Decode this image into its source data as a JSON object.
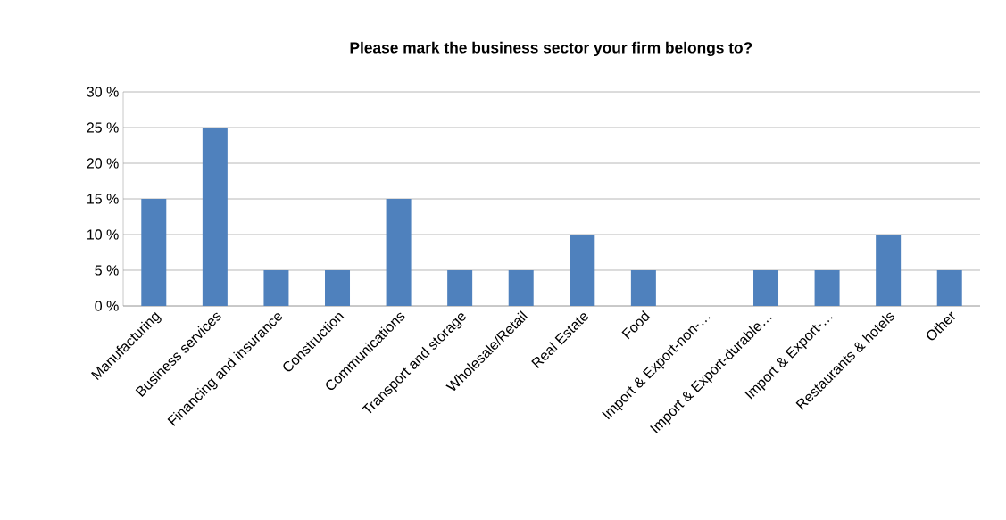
{
  "chart_data": {
    "type": "bar",
    "title": "Please mark the business sector your firm belongs to?",
    "categories": [
      "Manufacturing",
      "Business services",
      "Financing and insurance",
      "Construction",
      "Communications",
      "Transport and storage",
      "Wholesale/Retail",
      "Real Estate",
      "Food",
      "Import & Export-non-…",
      "Import & Export-durable…",
      "Import & Export-…",
      "Restaurants & hotels",
      "Other"
    ],
    "values": [
      15,
      25,
      5,
      5,
      15,
      5,
      5,
      10,
      5,
      0,
      5,
      5,
      10,
      5
    ],
    "color": "#4f81bd",
    "ylim": [
      0,
      30
    ],
    "yticks": [
      {
        "value": 0,
        "label": "0 %"
      },
      {
        "value": 5,
        "label": "5 %"
      },
      {
        "value": 10,
        "label": "10 %"
      },
      {
        "value": 15,
        "label": "15 %"
      },
      {
        "value": 20,
        "label": "20 %"
      },
      {
        "value": 25,
        "label": "25 %"
      },
      {
        "value": 30,
        "label": "30 %"
      }
    ],
    "grid": "y"
  }
}
